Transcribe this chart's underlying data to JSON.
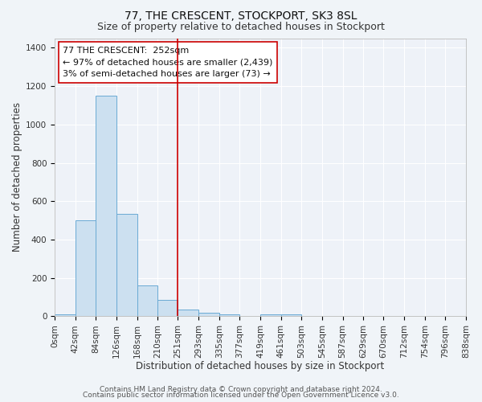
{
  "title": "77, THE CRESCENT, STOCKPORT, SK3 8SL",
  "subtitle": "Size of property relative to detached houses in Stockport",
  "xlabel": "Distribution of detached houses by size in Stockport",
  "ylabel": "Number of detached properties",
  "bin_edges": [
    0,
    42,
    84,
    126,
    168,
    210,
    251,
    293,
    335,
    377,
    419,
    461,
    503,
    545,
    587,
    629,
    670,
    712,
    754,
    796,
    838
  ],
  "bin_heights": [
    10,
    500,
    1150,
    535,
    160,
    85,
    35,
    20,
    10,
    0,
    10,
    10,
    0,
    0,
    0,
    0,
    0,
    0,
    0,
    0
  ],
  "tick_labels": [
    "0sqm",
    "42sqm",
    "84sqm",
    "126sqm",
    "168sqm",
    "210sqm",
    "251sqm",
    "293sqm",
    "335sqm",
    "377sqm",
    "419sqm",
    "461sqm",
    "503sqm",
    "545sqm",
    "587sqm",
    "629sqm",
    "670sqm",
    "712sqm",
    "754sqm",
    "796sqm",
    "838sqm"
  ],
  "property_line_x": 251,
  "bar_color": "#cce0f0",
  "bar_edge_color": "#6aaad4",
  "property_line_color": "#cc0000",
  "ylim": [
    0,
    1450
  ],
  "yticks": [
    0,
    200,
    400,
    600,
    800,
    1000,
    1200,
    1400
  ],
  "annotation_line1": "77 THE CRESCENT:  252sqm",
  "annotation_line2": "← 97% of detached houses are smaller (2,439)",
  "annotation_line3": "3% of semi-detached houses are larger (73) →",
  "footer1": "Contains HM Land Registry data © Crown copyright and database right 2024.",
  "footer2": "Contains public sector information licensed under the Open Government Licence v3.0.",
  "fig_background_color": "#f0f4f8",
  "ax_background_color": "#eef2f8",
  "grid_color": "#ffffff",
  "title_fontsize": 10,
  "subtitle_fontsize": 9,
  "axis_label_fontsize": 8.5,
  "tick_fontsize": 7.5,
  "annotation_fontsize": 8,
  "footer_fontsize": 6.5
}
